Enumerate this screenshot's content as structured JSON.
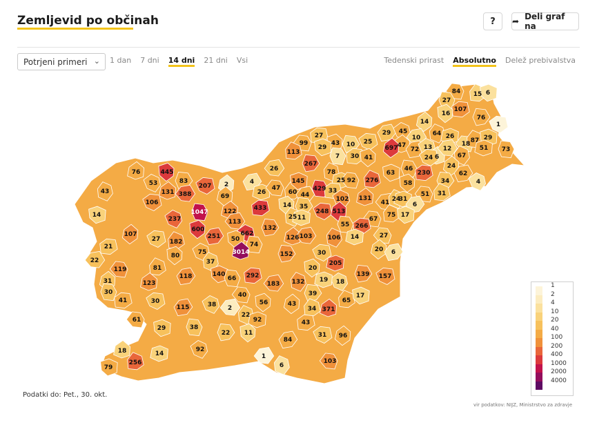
{
  "header": {
    "title": "Zemljevid po občinah",
    "help_label": "?",
    "share_label": "Deli graf na"
  },
  "icons": {
    "share": "share-arrow-icon",
    "dropdown": "chevron-down-icon"
  },
  "filter": {
    "selected": "Potrjeni primeri"
  },
  "time_tabs": [
    "1 dan",
    "7 dni",
    "14 dni",
    "21 dni",
    "Vsi"
  ],
  "active_time_tab": "14 dni",
  "mode_tabs": [
    "Tedenski prirast",
    "Absolutno",
    "Delež prebivalstva"
  ],
  "active_mode_tab": "Absolutno",
  "accent_color": "#f3c319",
  "legend": [
    {
      "label": "1",
      "color": "#fdf4d9"
    },
    {
      "label": "2",
      "color": "#fcecbf"
    },
    {
      "label": "4",
      "color": "#fbe19e"
    },
    {
      "label": "10",
      "color": "#f9d27a"
    },
    {
      "label": "20",
      "color": "#f7c15c"
    },
    {
      "label": "40",
      "color": "#f4ab45"
    },
    {
      "label": "100",
      "color": "#f0913a"
    },
    {
      "label": "200",
      "color": "#e9663a"
    },
    {
      "label": "400",
      "color": "#dc3a3c"
    },
    {
      "label": "1000",
      "color": "#c2124b"
    },
    {
      "label": "2000",
      "color": "#930d5c"
    },
    {
      "label": "4000",
      "color": "#5e0a63"
    }
  ],
  "municipality_values": [
    "84",
    "15",
    "6",
    "27",
    "107",
    "16",
    "76",
    "1",
    "14",
    "29",
    "45",
    "47",
    "10",
    "64",
    "26",
    "18",
    "87",
    "29",
    "73",
    "27",
    "43",
    "10",
    "25",
    "697",
    "72",
    "13",
    "6",
    "12",
    "67",
    "51",
    "99",
    "113",
    "29",
    "7",
    "30",
    "41",
    "267",
    "24",
    "24",
    "62",
    "4",
    "76",
    "26",
    "78",
    "25",
    "92",
    "276",
    "63",
    "46",
    "230",
    "445",
    "83",
    "207",
    "2",
    "4",
    "53",
    "131",
    "388",
    "43",
    "26",
    "47",
    "60",
    "145",
    "429",
    "33",
    "58",
    "34",
    "106",
    "69",
    "44",
    "102",
    "131",
    "41",
    "24",
    "31",
    "51",
    "31",
    "14",
    "1047",
    "433",
    "14",
    "35",
    "248",
    "513",
    "6",
    "237",
    "122",
    "113",
    "25",
    "11",
    "67",
    "75",
    "17",
    "55",
    "266",
    "600",
    "132",
    "27",
    "107",
    "251",
    "662",
    "126",
    "103",
    "106",
    "14",
    "27",
    "182",
    "50",
    "74",
    "21",
    "80",
    "152",
    "30",
    "20",
    "6",
    "75",
    "3014",
    "22",
    "37",
    "205",
    "119",
    "81",
    "140",
    "66",
    "292",
    "20",
    "139",
    "157",
    "31",
    "118",
    "18",
    "123",
    "183",
    "132",
    "19",
    "40",
    "65",
    "17",
    "30",
    "41",
    "56",
    "39",
    "30",
    "43",
    "115",
    "38",
    "371",
    "2",
    "22",
    "92",
    "61",
    "34",
    "29",
    "38",
    "43",
    "11",
    "22",
    "31",
    "96",
    "84",
    "92",
    "18",
    "1",
    "6",
    "14",
    "103",
    "256",
    "79"
  ],
  "footnote": "Podatki do: Pet., 30. okt.",
  "source": "vir podatkov: NIJZ, Ministrstvo za zdravje"
}
